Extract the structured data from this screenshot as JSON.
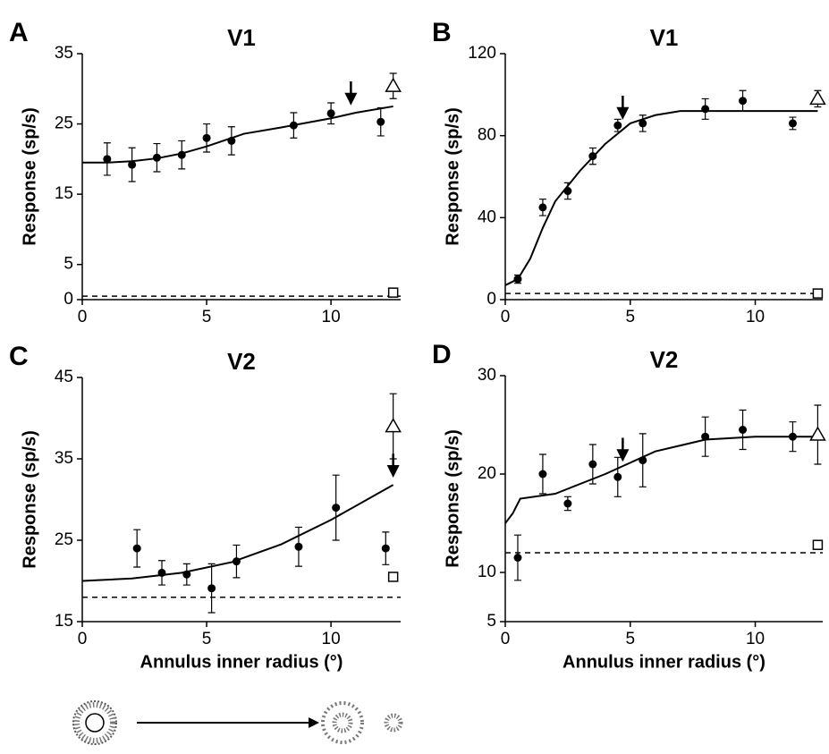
{
  "chart_data": [
    {
      "type": "scatter",
      "panel": "A",
      "title": "V1",
      "ylabel": "Response (sp/s)",
      "x": [
        1,
        2,
        3,
        4,
        5,
        6,
        8.5,
        10,
        12
      ],
      "values": [
        20,
        19.2,
        20.2,
        20.6,
        23,
        22.6,
        24.8,
        26.5,
        25.3
      ],
      "errors": [
        2.3,
        2.4,
        2,
        2,
        2,
        2,
        1.8,
        1.5,
        2
      ],
      "fit": {
        "x": [
          0,
          1,
          2,
          3,
          4,
          5,
          6,
          6.5,
          8,
          10,
          11,
          12.5
        ],
        "values": [
          19.5,
          19.5,
          19.7,
          20.1,
          20.8,
          21.8,
          23,
          23.6,
          24.5,
          25.8,
          26.6,
          27.5
        ]
      },
      "control": {
        "x": 12.5,
        "value": 30.4,
        "error": 1.8
      },
      "square": {
        "x": 12.5,
        "value": 1
      },
      "baseline": 0.5,
      "arrow": {
        "x": 10.8,
        "y": 28
      },
      "xlim": [
        0,
        12.8
      ],
      "ylim": [
        0,
        35
      ],
      "xticks": [
        0,
        5,
        10
      ],
      "yticks": [
        0,
        5,
        15,
        25,
        35
      ]
    },
    {
      "type": "scatter",
      "panel": "B",
      "title": "V1",
      "ylabel": "Response (sp/s)",
      "x": [
        0.5,
        1.5,
        2.5,
        3.5,
        4.5,
        5.5,
        8,
        9.5,
        11.5
      ],
      "values": [
        10,
        45,
        53,
        70,
        85,
        86,
        93,
        97,
        86
      ],
      "errors": [
        2,
        4,
        4,
        4,
        3,
        4,
        5,
        5,
        3
      ],
      "fit": {
        "x": [
          0,
          0.5,
          1,
          1.5,
          2,
          3,
          4,
          5,
          6,
          7,
          8,
          12.5
        ],
        "values": [
          7,
          10,
          20,
          35,
          48,
          63,
          76,
          86,
          90,
          92,
          92,
          92
        ]
      },
      "control": {
        "x": 12.5,
        "value": 98,
        "error": 4
      },
      "square": {
        "x": 12.5,
        "value": 3
      },
      "baseline": 3,
      "arrow": {
        "x": 4.7,
        "y": 89
      },
      "xlim": [
        0,
        12.7
      ],
      "ylim": [
        0,
        120
      ],
      "xticks": [
        0,
        5,
        10
      ],
      "yticks": [
        0,
        40,
        80,
        120
      ]
    },
    {
      "type": "scatter",
      "panel": "C",
      "title": "V2",
      "ylabel": "Response (sp/s)",
      "xlabel": "Annulus inner radius (°)",
      "x": [
        2.2,
        3.2,
        4.2,
        5.2,
        6.2,
        8.7,
        10.2,
        12.2
      ],
      "values": [
        24,
        21,
        20.8,
        19.1,
        22.4,
        24.2,
        29,
        24
      ],
      "errors": [
        2.3,
        1.5,
        1.3,
        3,
        2,
        2.4,
        4,
        2
      ],
      "fit": {
        "x": [
          0,
          2,
          4,
          6,
          8,
          10,
          12.5
        ],
        "values": [
          20,
          20.3,
          21,
          22.3,
          24.5,
          27.5,
          31.8
        ]
      },
      "control": {
        "x": 12.5,
        "value": 39,
        "error": 4
      },
      "square": {
        "x": 12.5,
        "value": 20.5
      },
      "baseline": 18,
      "arrow": {
        "x": 12.5,
        "y": 33
      },
      "xlim": [
        0,
        12.8
      ],
      "ylim": [
        15,
        45
      ],
      "xticks": [
        0,
        5,
        10
      ],
      "yticks": [
        15,
        25,
        35,
        45
      ]
    },
    {
      "type": "scatter",
      "panel": "D",
      "title": "V2",
      "ylabel": "Response (sp/s)",
      "xlabel": "Annulus inner radius (°)",
      "x": [
        0.5,
        1.5,
        2.5,
        3.5,
        4.5,
        5.5,
        8,
        9.5,
        11.5
      ],
      "values": [
        11.5,
        20,
        17,
        21,
        19.7,
        21.4,
        23.8,
        24.5,
        23.8
      ],
      "errors": [
        2.3,
        2,
        0.7,
        2,
        2,
        2.7,
        2,
        2,
        1.5
      ],
      "fit": {
        "x": [
          0,
          0.3,
          0.6,
          2,
          4,
          6,
          8,
          10,
          12.5
        ],
        "values": [
          15,
          16,
          17.5,
          18,
          20,
          22.3,
          23.5,
          23.8,
          23.8
        ]
      },
      "control": {
        "x": 12.5,
        "value": 24,
        "error": 3
      },
      "square": {
        "x": 12.5,
        "value": 12.8
      },
      "baseline": 12,
      "arrow": {
        "x": 4.7,
        "y": 21.5
      },
      "xlim": [
        0,
        12.7
      ],
      "ylim": [
        5,
        30
      ],
      "xticks": [
        0,
        5,
        10
      ],
      "yticks": [
        5,
        10,
        20,
        30
      ]
    }
  ]
}
